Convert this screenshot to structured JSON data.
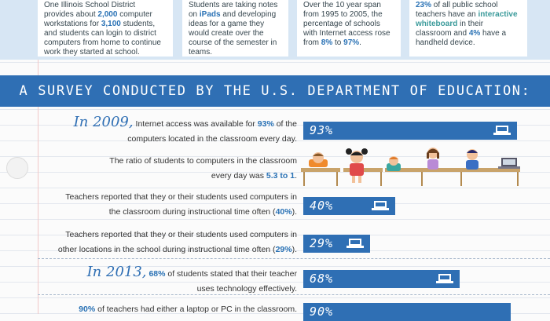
{
  "top_cards": [
    {
      "parts": [
        "One Illinois School District provides about ",
        "2,000",
        " computer workstations for ",
        "3,100",
        " students, and students can login to district computers from home to continue work they started at school."
      ],
      "hl": [
        1,
        3
      ]
    },
    {
      "parts": [
        "Students are taking notes on ",
        "iPads",
        " and developing ideas for a game they would create over the course of the semester in teams."
      ],
      "hl": [
        1
      ]
    },
    {
      "parts": [
        "Over the 10 year span from 1995 to 2005, the percentage of schools with Internet access rose from ",
        "8%",
        " to ",
        "97%",
        "."
      ],
      "hl": [
        1,
        3
      ]
    },
    {
      "parts": [
        "23%",
        " of all public school teachers have an ",
        "interactive whiteboard",
        " in their classroom and ",
        "4%",
        " have a handheld device."
      ],
      "hl": [
        0,
        2,
        4
      ]
    }
  ],
  "banner": {
    "title": "A SURVEY CONDUCTED BY THE U.S. DEPARTMENT OF EDUCATION:"
  },
  "rows": {
    "r1": {
      "year": "In 2009,",
      "l1a": " Internet access was available for ",
      "l1b": "93%",
      "l1c": " of the",
      "l2": "computers located in the classroom every day.",
      "bar_label": "93%",
      "value": 0.93
    },
    "r2": {
      "l1": "The ratio of students to computers in the classroom",
      "l2a": "every day was ",
      "l2b": "5.3 to 1",
      "l2c": "."
    },
    "r3": {
      "l1": "Teachers reported that they or their students used computers in",
      "l2a": "the classroom during instructional time often (",
      "l2b": "40%",
      "l2c": ").",
      "bar_label": "40%",
      "value": 0.4
    },
    "r4": {
      "l1": "Teachers reported that they or their students used computers in",
      "l2a": "other locations in the school during instructional time often (",
      "l2b": "29%",
      "l2c": ").",
      "bar_label": "29%",
      "value": 0.29
    },
    "r5": {
      "year": "In 2013,",
      "l1a": " ",
      "l1b": "68%",
      "l1c": " of students stated that their teacher",
      "l2": "uses technology effectively.",
      "bar_label": "68%",
      "value": 0.68
    },
    "r6": {
      "l1a": "90%",
      "l1b": " of teachers had either a laptop or PC in the classroom.",
      "bar_label": "90%",
      "value": 0.9
    }
  },
  "colors": {
    "accent": "#2f6fb4",
    "highlight": "#2a72b5",
    "band": "#d7e6f4"
  }
}
